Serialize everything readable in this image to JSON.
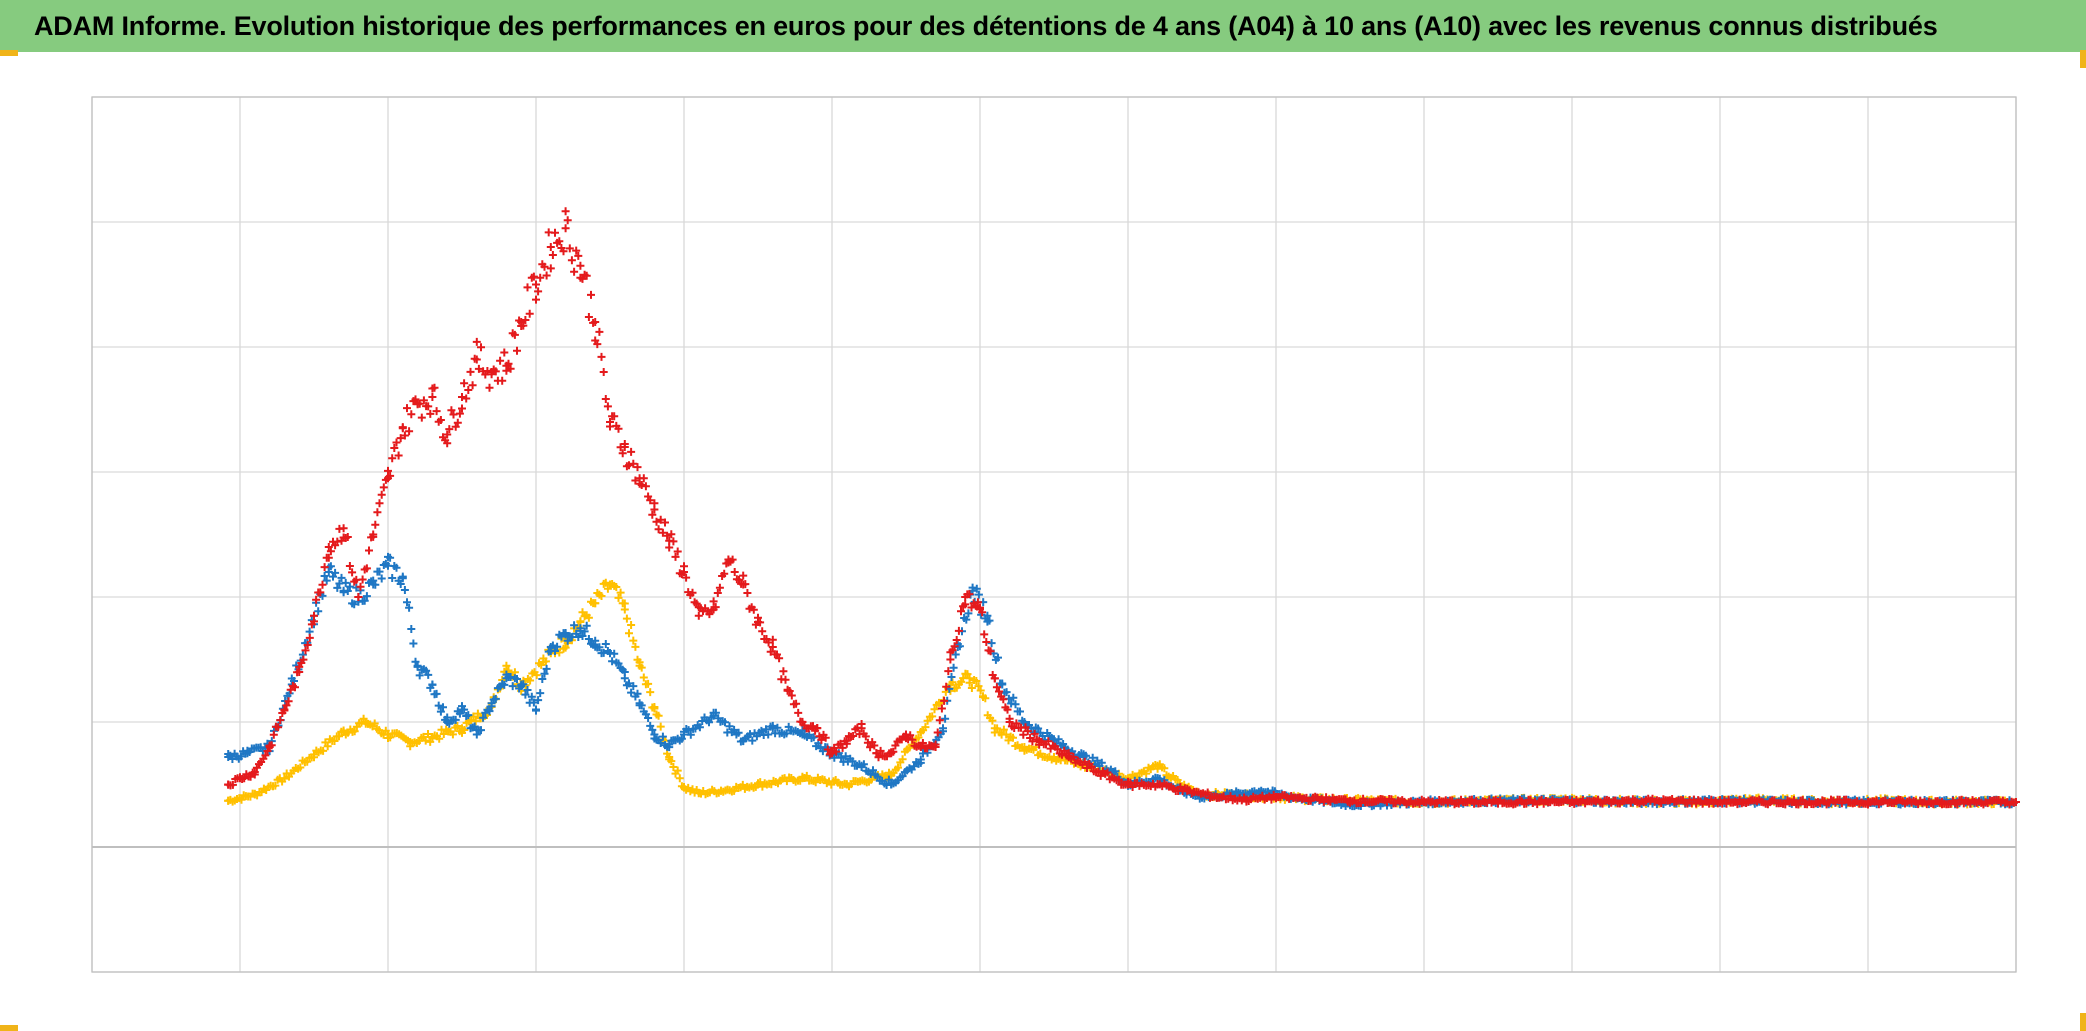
{
  "title": "ADAM Informe. Evolution historique des performances en euros pour des détentions de 4 ans (A04) à 10 ans (A10) avec les revenus connus distribués",
  "colors": {
    "title_background": "#86cb7f",
    "corner_accent": "#f0b419",
    "grid": "#d9d9d9",
    "frame": "#bfbfbf",
    "zero_line": "#bfbfbf"
  },
  "chart_data": {
    "type": "scatter",
    "marker": "plus",
    "grid": true,
    "legend": "none",
    "xlim": [
      0,
      13
    ],
    "ylim": [
      -1,
      6
    ],
    "x_gridlines": 13,
    "y_gridlines": [
      -1,
      0,
      1,
      2,
      3,
      4,
      5,
      6
    ],
    "zero_line_y": 0,
    "series": [
      {
        "color": "#ffc000",
        "x": [
          0.92,
          1.1,
          1.3,
          1.5,
          1.7,
          1.85,
          2.0,
          2.15,
          2.3,
          2.5,
          2.7,
          2.8,
          2.9,
          3.05,
          3.1,
          3.2,
          3.3,
          3.4,
          3.5,
          3.6,
          3.7,
          3.8,
          3.9,
          4.0,
          4.1,
          4.25,
          4.5,
          4.8,
          5.1,
          5.4,
          5.6,
          5.8,
          5.93,
          6.02,
          6.1,
          6.3,
          6.5,
          6.8,
          7.0,
          7.2,
          7.35,
          7.5,
          7.7,
          8.0,
          8.3,
          8.6,
          9.0,
          9.5,
          10.0,
          10.5,
          10.9,
          11.2,
          11.5,
          11.8,
          12.1,
          12.4,
          12.7,
          13.0
        ],
        "y": [
          0.37,
          0.42,
          0.55,
          0.74,
          0.92,
          1.0,
          0.9,
          0.84,
          0.88,
          0.95,
          1.12,
          1.45,
          1.3,
          1.48,
          1.55,
          1.65,
          1.8,
          1.95,
          2.1,
          1.9,
          1.45,
          1.12,
          0.72,
          0.48,
          0.43,
          0.45,
          0.5,
          0.55,
          0.5,
          0.58,
          0.92,
          1.3,
          1.35,
          1.2,
          0.95,
          0.8,
          0.72,
          0.62,
          0.55,
          0.65,
          0.5,
          0.42,
          0.42,
          0.4,
          0.38,
          0.37,
          0.36,
          0.37,
          0.38,
          0.36,
          0.36,
          0.38,
          0.37,
          0.36,
          0.37,
          0.36,
          0.36,
          0.36
        ]
      },
      {
        "color": "#1f77c4",
        "x": [
          0.92,
          1.05,
          1.2,
          1.35,
          1.5,
          1.6,
          1.7,
          1.8,
          1.9,
          2.0,
          2.1,
          2.2,
          2.3,
          2.4,
          2.5,
          2.6,
          2.7,
          2.8,
          2.9,
          3.0,
          3.1,
          3.2,
          3.3,
          3.4,
          3.5,
          3.6,
          3.7,
          3.8,
          3.9,
          4.0,
          4.2,
          4.4,
          4.6,
          4.8,
          5.0,
          5.2,
          5.4,
          5.6,
          5.75,
          5.85,
          5.95,
          6.05,
          6.15,
          6.3,
          6.5,
          6.7,
          6.9,
          7.0,
          7.2,
          7.35,
          7.5,
          7.7,
          7.9,
          8.1,
          8.5,
          9.0,
          9.5,
          10.0,
          10.5,
          11.0,
          11.5,
          12.0,
          12.5,
          13.0
        ],
        "y": [
          0.72,
          0.75,
          0.8,
          1.3,
          1.85,
          2.2,
          2.05,
          2.0,
          2.1,
          2.25,
          2.15,
          1.45,
          1.3,
          1.0,
          1.1,
          0.9,
          1.15,
          1.35,
          1.3,
          1.1,
          1.6,
          1.7,
          1.75,
          1.65,
          1.55,
          1.35,
          1.15,
          0.9,
          0.82,
          0.9,
          1.05,
          0.85,
          0.95,
          0.9,
          0.75,
          0.65,
          0.5,
          0.7,
          0.95,
          1.6,
          2.05,
          1.85,
          1.3,
          1.0,
          0.85,
          0.72,
          0.6,
          0.5,
          0.55,
          0.45,
          0.4,
          0.42,
          0.45,
          0.4,
          0.34,
          0.36,
          0.37,
          0.37,
          0.36,
          0.37,
          0.36,
          0.36,
          0.36,
          0.36
        ]
      },
      {
        "color": "#e41a1c",
        "x": [
          0.92,
          1.0,
          1.1,
          1.2,
          1.3,
          1.4,
          1.5,
          1.6,
          1.7,
          1.8,
          1.9,
          2.0,
          2.1,
          2.2,
          2.3,
          2.4,
          2.5,
          2.6,
          2.7,
          2.8,
          2.9,
          3.0,
          3.1,
          3.2,
          3.3,
          3.4,
          3.5,
          3.6,
          3.7,
          3.8,
          3.9,
          4.0,
          4.1,
          4.2,
          4.3,
          4.4,
          4.5,
          4.6,
          4.7,
          4.8,
          4.9,
          5.0,
          5.1,
          5.2,
          5.3,
          5.4,
          5.5,
          5.6,
          5.7,
          5.8,
          5.9,
          6.0,
          6.1,
          6.2,
          6.4,
          6.6,
          6.8,
          7.0,
          7.2,
          7.4,
          7.6,
          7.8,
          8.0,
          8.5,
          9.0,
          9.5,
          10.0,
          10.5,
          11.0,
          11.5,
          12.0,
          12.5,
          13.0
        ],
        "y": [
          0.5,
          0.55,
          0.6,
          0.8,
          1.1,
          1.4,
          1.85,
          2.4,
          2.55,
          2.0,
          2.5,
          2.95,
          3.35,
          3.55,
          3.6,
          3.3,
          3.6,
          3.9,
          3.8,
          3.85,
          4.2,
          4.5,
          4.8,
          4.95,
          4.65,
          4.2,
          3.4,
          3.2,
          2.95,
          2.7,
          2.45,
          2.2,
          1.85,
          1.9,
          2.3,
          2.1,
          1.8,
          1.6,
          1.25,
          1.0,
          0.95,
          0.75,
          0.85,
          0.95,
          0.75,
          0.75,
          0.9,
          0.8,
          0.8,
          1.5,
          2.0,
          1.9,
          1.35,
          1.0,
          0.85,
          0.72,
          0.6,
          0.5,
          0.5,
          0.45,
          0.4,
          0.38,
          0.4,
          0.37,
          0.36,
          0.36,
          0.36,
          0.37,
          0.36,
          0.36,
          0.36,
          0.36,
          0.36
        ]
      }
    ]
  }
}
